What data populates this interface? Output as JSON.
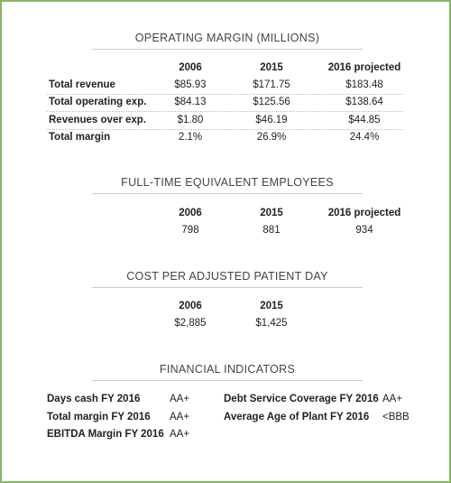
{
  "operating_margin": {
    "title": "OPERATING MARGIN (MILLIONS)",
    "headers": [
      "2006",
      "2015",
      "2016 projected"
    ],
    "rows": [
      {
        "label": "Total revenue",
        "values": [
          "$85.93",
          "$171.75",
          "$183.48"
        ]
      },
      {
        "label": "Total operating exp.",
        "values": [
          "$84.13",
          "$125.56",
          "$138.64"
        ]
      },
      {
        "label": "Revenues over exp.",
        "values": [
          "$1.80",
          "$46.19",
          "$44.85"
        ]
      },
      {
        "label": "Total margin",
        "values": [
          "2.1%",
          "26.9%",
          "24.4%"
        ]
      }
    ]
  },
  "employees": {
    "title": "FULL-TIME EQUIVALENT EMPLOYEES",
    "headers": [
      "2006",
      "2015",
      "2016 projected"
    ],
    "values": [
      "798",
      "881",
      "934"
    ]
  },
  "cost_per_day": {
    "title": "COST PER ADJUSTED PATIENT DAY",
    "headers": [
      "2006",
      "2015"
    ],
    "values": [
      "$2,885",
      "$1,425"
    ]
  },
  "financial_indicators": {
    "title": "FINANCIAL INDICATORS",
    "left": [
      {
        "label": "Days cash FY 2016",
        "value": "AA+"
      },
      {
        "label": "Total margin FY 2016",
        "value": "AA+"
      },
      {
        "label": "EBITDA Margin FY 2016",
        "value": "AA+"
      }
    ],
    "right": [
      {
        "label": "Debt Service Coverage FY 2016",
        "value": "AA+"
      },
      {
        "label": "Average Age of Plant FY 2016",
        "value": "<BBB"
      }
    ]
  }
}
